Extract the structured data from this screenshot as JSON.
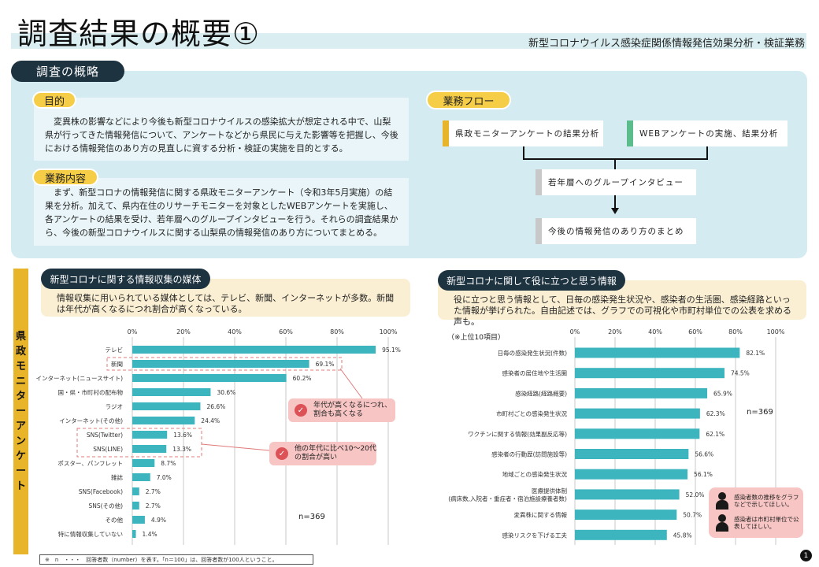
{
  "header": {
    "title": "調査結果の概要①",
    "subtitle": "新型コロナウイルス感染症関係情報発信効果分析・検証業務"
  },
  "overview": {
    "tab": "調査の概略",
    "purpose": {
      "label": "目的",
      "text": "　変異株の影響などにより今後も新型コロナウイルスの感染拡大が想定される中で、山梨県が行ってきた情報発信について、アンケートなどから県民に与えた影響等を把握し、今後における情報発信のあり方の見直しに資する分析・検証の実施を目的とする。"
    },
    "work": {
      "label": "業務内容",
      "text": "　まず、新型コロナの情報発信に関する県政モニターアンケート（令和3年5月実施）の結果を分析。加えて、県内在住のリサーチモニターを対象としたWEBアンケートを実施し、各アンケートの結果を受け、若年層へのグループインタビューを行う。それらの調査結果から、今後の新型コロナウイルスに関する山梨県の情報発信のあり方についてまとめる。"
    },
    "flow": {
      "label": "業務フロー",
      "box1": "県政モニターアンケートの結果分析",
      "box2": "WEBアンケートの実施、結果分析",
      "box3": "若年層へのグループインタビュー",
      "box4": "今後の情報発信のあり方のまとめ"
    }
  },
  "side_label": "県政モニターアンケート",
  "left_section": {
    "tab": "新型コロナに関する情報収集の媒体",
    "desc": "情報収集に用いられている媒体としては、テレビ、新聞、インターネットが多数。新聞は年代が高くなるにつれ割合が高くなっている。",
    "callout1": "年代が高くなるにつれ、割合も高くなる",
    "callout2": "他の年代に比べ10～20代の割合が高い",
    "n": "n=369"
  },
  "right_section": {
    "tab": "新型コロナに関して役に立つと思う情報",
    "desc": "役に立つと思う情報として、日毎の感染発生状況や、感染者の生活圏、感染経路といった情報が挙げられた。自由記述では、グラフでの可視化や市町村単位での公表を求める声も。",
    "top_note": "（※上位10項目）",
    "n": "n=369",
    "note1": "感染者数の推移をグラフなどで示してほしい。",
    "note2": "感染者は市町村単位で公表してほしい。"
  },
  "footnote": "※　n　・・・　回答者数（number）を表す。「n＝100」は、回答者数が100人ということ。",
  "page_number": "1",
  "colors": {
    "bar": "#3db5bf",
    "accent": "#f6cd47",
    "navy": "#1e3340",
    "flow_orange": "#e8b52a",
    "flow_green": "#5bbd8b",
    "flow_gray": "#c8c8c8"
  },
  "chart_data": [
    {
      "type": "bar",
      "orientation": "horizontal",
      "categories": [
        "テレビ",
        "新聞",
        "インターネット(ニュースサイト)",
        "国・県・市町村の配布物",
        "ラジオ",
        "インターネット(その他)",
        "SNS(Twitter)",
        "SNS(LINE)",
        "ポスター、パンフレット",
        "雑誌",
        "SNS(Facebook)",
        "SNS(その他)",
        "その他",
        "特に情報収集していない"
      ],
      "values": [
        95.1,
        69.1,
        60.2,
        30.6,
        26.6,
        24.4,
        13.6,
        13.3,
        8.7,
        7.0,
        2.7,
        2.7,
        4.9,
        1.4
      ],
      "value_labels": [
        "95.1%",
        "69.1%",
        "60.2%",
        "30.6%",
        "26.6%",
        "24.4%",
        "13.6%",
        "13.3%",
        "8.7%",
        "7.0%",
        "2.7%",
        "2.7%",
        "4.9%",
        "1.4%"
      ],
      "ticks": [
        "0%",
        "20%",
        "40%",
        "60%",
        "80%",
        "100%"
      ],
      "xlim": [
        0,
        100
      ],
      "grid": true
    },
    {
      "type": "bar",
      "orientation": "horizontal",
      "categories": [
        "日毎の感染発生状況(件数)",
        "感染者の居住地や生活圏",
        "感染経路(経路概要)",
        "市町村ごとの感染発生状況",
        "ワクチンに関する情報(効果副反応等)",
        "感染者の行動歴(訪問施設等)",
        "地域ごとの感染発生状況",
        "医療提供体制（病床数,入院者・重症者・宿泊施設療養者数）",
        "変異株に関する情報",
        "感染リスクを下げる工夫"
      ],
      "category_lines": [
        [
          "日毎の感染発生状況(件数)"
        ],
        [
          "感染者の居住地や生活圏"
        ],
        [
          "感染経路(経路概要)"
        ],
        [
          "市町村ごとの感染発生状況"
        ],
        [
          "ワクチンに関する情報(効果副反応等)"
        ],
        [
          "感染者の行動歴(訪問施設等)"
        ],
        [
          "地域ごとの感染発生状況"
        ],
        [
          "医療提供体制",
          "(病床数,入院者・重症者・宿泊施設療養者数)"
        ],
        [
          "変異株に関する情報"
        ],
        [
          "感染リスクを下げる工夫"
        ]
      ],
      "values": [
        82.1,
        74.5,
        65.9,
        62.3,
        62.1,
        56.6,
        56.1,
        52.0,
        50.7,
        45.8
      ],
      "value_labels": [
        "82.1%",
        "74.5%",
        "65.9%",
        "62.3%",
        "62.1%",
        "56.6%",
        "56.1%",
        "52.0%",
        "50.7%",
        "45.8%"
      ],
      "ticks": [
        "0%",
        "20%",
        "40%",
        "60%",
        "80%",
        "100%"
      ],
      "xlim": [
        0,
        100
      ],
      "grid": true
    }
  ]
}
